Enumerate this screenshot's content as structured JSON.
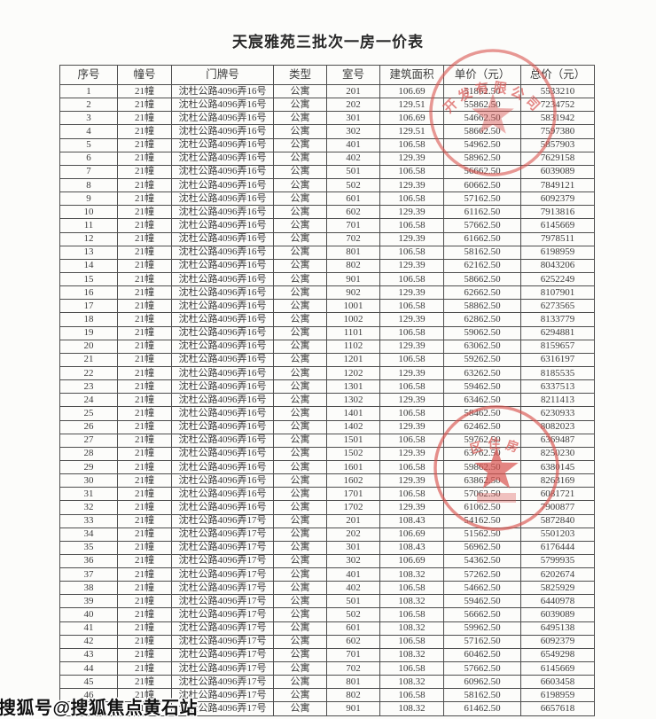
{
  "title": "天宸雅苑三批次一房一价表",
  "watermark": "搜狐号@搜狐焦点黄石站",
  "colors": {
    "stamp_red": "#d9534f",
    "table_border": "#4d4d4d",
    "text": "#3b3b3b"
  },
  "stamps": {
    "top": {
      "arc_text": "开发有限公司"
    },
    "bottom": {
      "arc_text": "区住房"
    }
  },
  "table": {
    "headers": [
      "序号",
      "幢号",
      "门牌号",
      "类型",
      "室号",
      "建筑面积",
      "单价（元）",
      "总价（元）"
    ],
    "rows": [
      [
        "1",
        "21幢",
        "沈杜公路4096弄16号",
        "公寓",
        "201",
        "106.69",
        "51862.50",
        "5533210"
      ],
      [
        "2",
        "21幢",
        "沈杜公路4096弄16号",
        "公寓",
        "202",
        "129.51",
        "55862.50",
        "7234752"
      ],
      [
        "3",
        "21幢",
        "沈杜公路4096弄16号",
        "公寓",
        "301",
        "106.69",
        "54662.50",
        "5831942"
      ],
      [
        "4",
        "21幢",
        "沈杜公路4096弄16号",
        "公寓",
        "302",
        "129.51",
        "58662.50",
        "7597380"
      ],
      [
        "5",
        "21幢",
        "沈杜公路4096弄16号",
        "公寓",
        "401",
        "106.58",
        "54962.50",
        "5857903"
      ],
      [
        "6",
        "21幢",
        "沈杜公路4096弄16号",
        "公寓",
        "402",
        "129.39",
        "58962.50",
        "7629158"
      ],
      [
        "7",
        "21幢",
        "沈杜公路4096弄16号",
        "公寓",
        "501",
        "106.58",
        "56662.50",
        "6039089"
      ],
      [
        "8",
        "21幢",
        "沈杜公路4096弄16号",
        "公寓",
        "502",
        "129.39",
        "60662.50",
        "7849121"
      ],
      [
        "9",
        "21幢",
        "沈杜公路4096弄16号",
        "公寓",
        "601",
        "106.58",
        "57162.50",
        "6092379"
      ],
      [
        "10",
        "21幢",
        "沈杜公路4096弄16号",
        "公寓",
        "602",
        "129.39",
        "61162.50",
        "7913816"
      ],
      [
        "11",
        "21幢",
        "沈杜公路4096弄16号",
        "公寓",
        "701",
        "106.58",
        "57662.50",
        "6145669"
      ],
      [
        "12",
        "21幢",
        "沈杜公路4096弄16号",
        "公寓",
        "702",
        "129.39",
        "61662.50",
        "7978511"
      ],
      [
        "13",
        "21幢",
        "沈杜公路4096弄16号",
        "公寓",
        "801",
        "106.58",
        "58162.50",
        "6198959"
      ],
      [
        "14",
        "21幢",
        "沈杜公路4096弄16号",
        "公寓",
        "802",
        "129.39",
        "62162.50",
        "8043206"
      ],
      [
        "15",
        "21幢",
        "沈杜公路4096弄16号",
        "公寓",
        "901",
        "106.58",
        "58662.50",
        "6252249"
      ],
      [
        "16",
        "21幢",
        "沈杜公路4096弄16号",
        "公寓",
        "902",
        "129.39",
        "62662.50",
        "8107901"
      ],
      [
        "17",
        "21幢",
        "沈杜公路4096弄16号",
        "公寓",
        "1001",
        "106.58",
        "58862.50",
        "6273565"
      ],
      [
        "18",
        "21幢",
        "沈杜公路4096弄16号",
        "公寓",
        "1002",
        "129.39",
        "62862.50",
        "8133779"
      ],
      [
        "19",
        "21幢",
        "沈杜公路4096弄16号",
        "公寓",
        "1101",
        "106.58",
        "59062.50",
        "6294881"
      ],
      [
        "20",
        "21幢",
        "沈杜公路4096弄16号",
        "公寓",
        "1102",
        "129.39",
        "63062.50",
        "8159657"
      ],
      [
        "21",
        "21幢",
        "沈杜公路4096弄16号",
        "公寓",
        "1201",
        "106.58",
        "59262.50",
        "6316197"
      ],
      [
        "22",
        "21幢",
        "沈杜公路4096弄16号",
        "公寓",
        "1202",
        "129.39",
        "63262.50",
        "8185535"
      ],
      [
        "23",
        "21幢",
        "沈杜公路4096弄16号",
        "公寓",
        "1301",
        "106.58",
        "59462.50",
        "6337513"
      ],
      [
        "24",
        "21幢",
        "沈杜公路4096弄16号",
        "公寓",
        "1302",
        "129.39",
        "63462.50",
        "8211413"
      ],
      [
        "25",
        "21幢",
        "沈杜公路4096弄16号",
        "公寓",
        "1401",
        "106.58",
        "58462.50",
        "6230933"
      ],
      [
        "26",
        "21幢",
        "沈杜公路4096弄16号",
        "公寓",
        "1402",
        "129.39",
        "62462.50",
        "8082023"
      ],
      [
        "27",
        "21幢",
        "沈杜公路4096弄16号",
        "公寓",
        "1501",
        "106.58",
        "59762.50",
        "6369487"
      ],
      [
        "28",
        "21幢",
        "沈杜公路4096弄16号",
        "公寓",
        "1502",
        "129.39",
        "63762.50",
        "8250230"
      ],
      [
        "29",
        "21幢",
        "沈杜公路4096弄16号",
        "公寓",
        "1601",
        "106.58",
        "59862.50",
        "6380145"
      ],
      [
        "30",
        "21幢",
        "沈杜公路4096弄16号",
        "公寓",
        "1602",
        "129.39",
        "63862.50",
        "8263169"
      ],
      [
        "31",
        "21幢",
        "沈杜公路4096弄16号",
        "公寓",
        "1701",
        "106.58",
        "57062.50",
        "6081721"
      ],
      [
        "32",
        "21幢",
        "沈杜公路4096弄16号",
        "公寓",
        "1702",
        "129.39",
        "61062.50",
        "7900877"
      ],
      [
        "33",
        "21幢",
        "沈杜公路4096弄17号",
        "公寓",
        "201",
        "108.43",
        "54162.50",
        "5872840"
      ],
      [
        "34",
        "21幢",
        "沈杜公路4096弄17号",
        "公寓",
        "202",
        "106.69",
        "51562.50",
        "5501203"
      ],
      [
        "35",
        "21幢",
        "沈杜公路4096弄17号",
        "公寓",
        "301",
        "108.43",
        "56962.50",
        "6176444"
      ],
      [
        "36",
        "21幢",
        "沈杜公路4096弄17号",
        "公寓",
        "302",
        "106.69",
        "54362.50",
        "5799935"
      ],
      [
        "37",
        "21幢",
        "沈杜公路4096弄17号",
        "公寓",
        "401",
        "108.32",
        "57262.50",
        "6202674"
      ],
      [
        "38",
        "21幢",
        "沈杜公路4096弄17号",
        "公寓",
        "402",
        "106.58",
        "54662.50",
        "5825929"
      ],
      [
        "39",
        "21幢",
        "沈杜公路4096弄17号",
        "公寓",
        "501",
        "108.32",
        "59462.50",
        "6440978"
      ],
      [
        "40",
        "21幢",
        "沈杜公路4096弄17号",
        "公寓",
        "502",
        "106.58",
        "56662.50",
        "6039089"
      ],
      [
        "41",
        "21幢",
        "沈杜公路4096弄17号",
        "公寓",
        "601",
        "108.32",
        "59962.50",
        "6495138"
      ],
      [
        "42",
        "21幢",
        "沈杜公路4096弄17号",
        "公寓",
        "602",
        "106.58",
        "57162.50",
        "6092379"
      ],
      [
        "43",
        "21幢",
        "沈杜公路4096弄17号",
        "公寓",
        "701",
        "108.32",
        "60462.50",
        "6549298"
      ],
      [
        "44",
        "21幢",
        "沈杜公路4096弄17号",
        "公寓",
        "702",
        "106.58",
        "57662.50",
        "6145669"
      ],
      [
        "45",
        "21幢",
        "沈杜公路4096弄17号",
        "公寓",
        "801",
        "108.32",
        "60962.50",
        "6603458"
      ],
      [
        "46",
        "21幢",
        "沈杜公路4096弄17号",
        "公寓",
        "802",
        "106.58",
        "58162.50",
        "6198959"
      ],
      [
        "47",
        "21幢",
        "沈杜公路4096弄17号",
        "公寓",
        "901",
        "108.32",
        "61462.50",
        "6657618"
      ]
    ]
  }
}
